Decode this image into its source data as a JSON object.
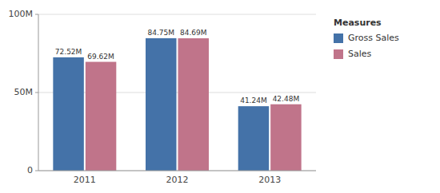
{
  "chart_data": {
    "type": "bar",
    "categories": [
      "2011",
      "2012",
      "2013"
    ],
    "series": [
      {
        "name": "Gross Sales",
        "color": "#4472A8",
        "values": [
          72.52,
          84.75,
          41.24
        ],
        "value_labels": [
          "72.52M",
          "84.75M",
          "41.24M"
        ]
      },
      {
        "name": "Sales",
        "color": "#C0748A",
        "values": [
          69.62,
          84.69,
          42.48
        ],
        "value_labels": [
          "69.62M",
          "84.69M",
          "42.48M"
        ]
      }
    ],
    "ylim": [
      0,
      100
    ],
    "yticks": [
      0,
      {
        "value": 50,
        "label": "50M"
      },
      {
        "value": 100,
        "label": "100M"
      }
    ],
    "grid": true,
    "data_labels": true,
    "legend": "right",
    "legend_title": "Measures"
  }
}
